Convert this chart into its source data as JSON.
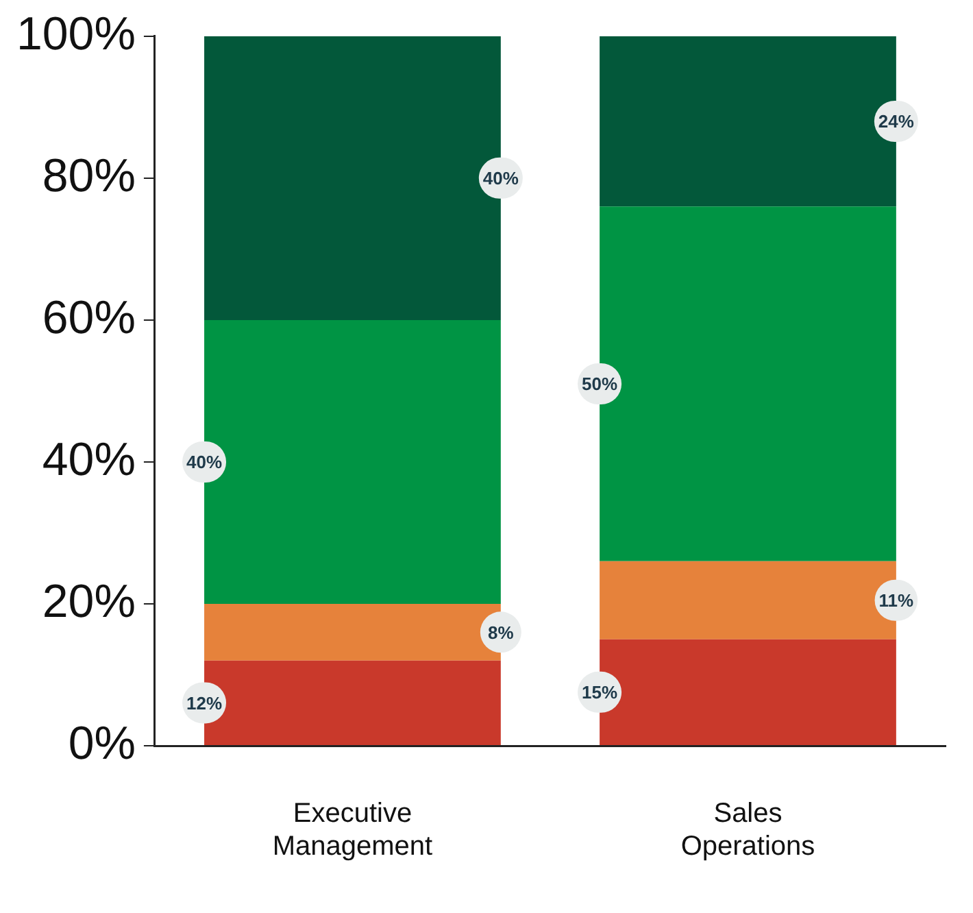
{
  "chart_data": {
    "type": "bar",
    "stacked": true,
    "categories": [
      "Executive Management",
      "Sales Operations"
    ],
    "series": [
      {
        "color": "#c9392b",
        "values": [
          12,
          15
        ],
        "value_labels": [
          "12%",
          "15%"
        ]
      },
      {
        "color": "#e6823b",
        "values": [
          8,
          11
        ],
        "value_labels": [
          "8%",
          "11%"
        ]
      },
      {
        "color": "#009444",
        "values": [
          40,
          50
        ],
        "value_labels": [
          "40%",
          "50%"
        ]
      },
      {
        "color": "#03583a",
        "values": [
          40,
          24
        ],
        "value_labels": [
          "40%",
          "24%"
        ]
      }
    ],
    "ylim": [
      0,
      100
    ],
    "yticks": [
      {
        "value": 0,
        "label": "0%"
      },
      {
        "value": 20,
        "label": "20%"
      },
      {
        "value": 40,
        "label": "40%"
      },
      {
        "value": 60,
        "label": "60%"
      },
      {
        "value": 80,
        "label": "80%"
      },
      {
        "value": 100,
        "label": "100%"
      }
    ],
    "grid": false,
    "legend": false
  }
}
